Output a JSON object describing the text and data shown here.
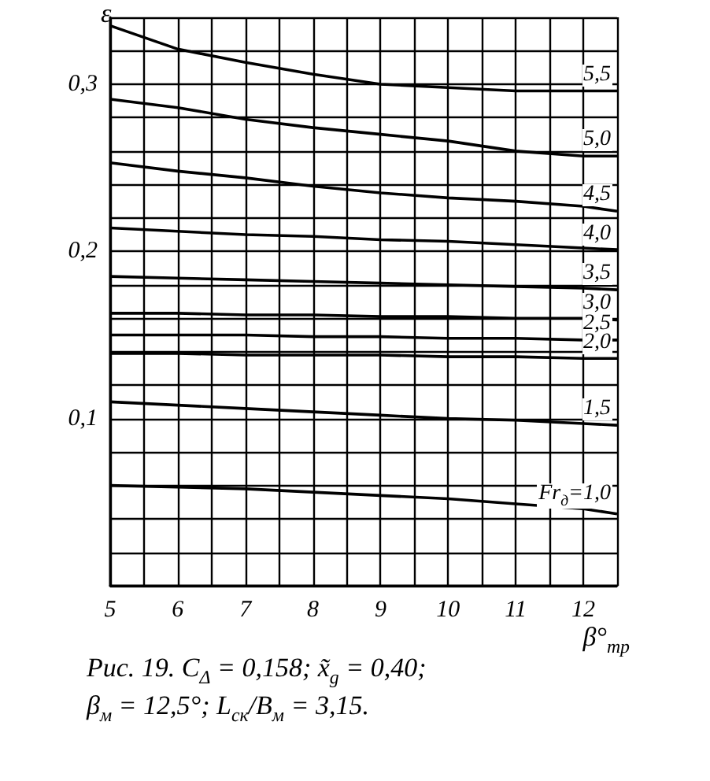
{
  "chart_data": {
    "type": "line",
    "xlabel": "β°$_{тр}$",
    "ylabel": "ε",
    "annotations": [
      "Рис. 19. C$_{Δ}$ = 0,158; x̃$_{g}$ = 0,40; β$_{м}$ = 12,5°; L$_{ск}$/B$_{м}$ = 3,15."
    ],
    "x": [
      5,
      6,
      7,
      8,
      9,
      10,
      11,
      12,
      12.5
    ],
    "series": [
      {
        "name": "5,5",
        "color": "#000000",
        "values": [
          0.335,
          0.321,
          0.313,
          0.306,
          0.3,
          0.298,
          0.296,
          0.296,
          0.296
        ]
      },
      {
        "name": "5,0",
        "color": "#000000",
        "values": [
          0.291,
          0.286,
          0.279,
          0.274,
          0.27,
          0.266,
          0.26,
          0.257,
          0.257
        ]
      },
      {
        "name": "4,5",
        "color": "#000000",
        "values": [
          0.253,
          0.248,
          0.244,
          0.239,
          0.235,
          0.232,
          0.23,
          0.227,
          0.224
        ]
      },
      {
        "name": "4,0",
        "color": "#000000",
        "values": [
          0.214,
          0.212,
          0.21,
          0.209,
          0.207,
          0.206,
          0.204,
          0.202,
          0.201
        ]
      },
      {
        "name": "3,5",
        "color": "#000000",
        "values": [
          0.185,
          0.184,
          0.183,
          0.182,
          0.181,
          0.18,
          0.179,
          0.178,
          0.177
        ]
      },
      {
        "name": "3,0",
        "color": "#000000",
        "values": [
          0.163,
          0.163,
          0.162,
          0.162,
          0.161,
          0.161,
          0.16,
          0.16,
          0.159
        ]
      },
      {
        "name": "2,5",
        "color": "#000000",
        "values": [
          0.15,
          0.15,
          0.15,
          0.149,
          0.149,
          0.148,
          0.148,
          0.147,
          0.147
        ]
      },
      {
        "name": "2,0",
        "color": "#000000",
        "values": [
          0.139,
          0.139,
          0.138,
          0.138,
          0.138,
          0.137,
          0.137,
          0.136,
          0.136
        ]
      },
      {
        "name": "1,5",
        "color": "#000000",
        "values": [
          0.11,
          0.108,
          0.106,
          0.104,
          0.102,
          0.1,
          0.099,
          0.097,
          0.096
        ]
      },
      {
        "name": "Fr$_{д}$=1,0",
        "color": "#000000",
        "values": [
          0.06,
          0.059,
          0.058,
          0.056,
          0.054,
          0.052,
          0.049,
          0.046,
          0.043
        ]
      }
    ],
    "xlim": [
      5,
      12.5
    ],
    "ylim": [
      0,
      0.34
    ],
    "xticks": [
      5,
      {
        "value": 5.5,
        "label": null
      },
      6,
      {
        "value": 6.5,
        "label": null
      },
      7,
      {
        "value": 7.5,
        "label": null
      },
      8,
      {
        "value": 8.5,
        "label": null
      },
      9,
      {
        "value": 9.5,
        "label": null
      },
      10,
      {
        "value": 10.5,
        "label": null
      },
      11,
      {
        "value": 11.5,
        "label": null
      },
      12,
      {
        "value": 12.5,
        "label": null
      }
    ],
    "yticks": [
      {
        "value": 0,
        "label": null
      },
      {
        "value": 0.02,
        "label": null
      },
      {
        "value": 0.04,
        "label": null
      },
      {
        "value": 0.06,
        "label": null
      },
      {
        "value": 0.08,
        "label": null
      },
      {
        "value": 0.1,
        "label": "0,1"
      },
      {
        "value": 0.12,
        "label": null
      },
      {
        "value": 0.14,
        "label": null
      },
      {
        "value": 0.16,
        "label": null
      },
      {
        "value": 0.18,
        "label": null
      },
      {
        "value": 0.2,
        "label": "0,2"
      },
      {
        "value": 0.22,
        "label": null
      },
      {
        "value": 0.24,
        "label": null
      },
      {
        "value": 0.26,
        "label": null
      },
      {
        "value": 0.28,
        "label": null
      },
      {
        "value": 0.3,
        "label": "0,3"
      },
      {
        "value": 0.32,
        "label": null
      },
      {
        "value": 0.34,
        "label": null
      }
    ],
    "grid": true,
    "legend": false,
    "line_style": "solid"
  }
}
